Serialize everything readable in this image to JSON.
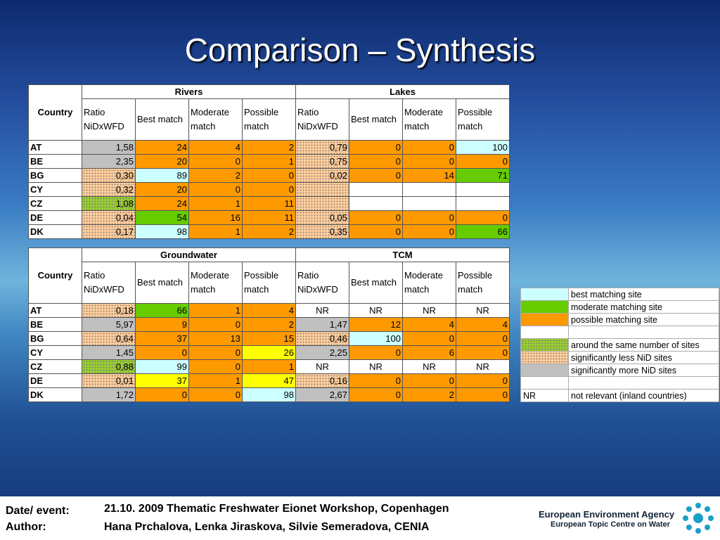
{
  "title": "Comparison – Synthesis",
  "tables": [
    {
      "column_header": "Country",
      "groups": [
        "Rivers",
        "Lakes"
      ],
      "subheaders": [
        "Ratio NiDxWFD",
        "Best match",
        "Moderate match",
        "Possible match",
        "Ratio NiDxWFD",
        "Best match",
        "Moderate match",
        "Possible match"
      ],
      "rows": [
        {
          "country": "AT",
          "cells": [
            "1,58",
            24,
            4,
            2,
            "0,79",
            0,
            0,
            100
          ],
          "fills": [
            "#c0c0c0",
            "#ff9900",
            "#ff9900",
            "#ff9900",
            "#ffcc99",
            "#ff9900",
            "#ff9900",
            "#ccffff"
          ]
        },
        {
          "country": "BE",
          "cells": [
            "2,35",
            20,
            0,
            1,
            "0,75",
            0,
            0,
            0
          ],
          "fills": [
            "#c0c0c0",
            "#ff9900",
            "#ff9900",
            "#ff9900",
            "#ffcc99",
            "#ff9900",
            "#ff9900",
            "#ff9900"
          ]
        },
        {
          "country": "BG",
          "cells": [
            "0,30",
            89,
            2,
            0,
            "0,02",
            0,
            14,
            71
          ],
          "fills": [
            "#ffcc99",
            "#ccffff",
            "#ff9900",
            "#ff9900",
            "#ffcc99",
            "#ff9900",
            "#ff9900",
            "#66cc00"
          ]
        },
        {
          "country": "CY",
          "cells": [
            "0,32",
            20,
            0,
            0,
            null,
            null,
            null,
            null
          ],
          "fills": [
            "#ffcc99",
            "#ff9900",
            "#ff9900",
            "#ff9900",
            "#ffcc99",
            "#ffffff",
            "#ffffff",
            "#ffffff"
          ]
        },
        {
          "country": "CZ",
          "cells": [
            "1,08",
            24,
            1,
            11,
            null,
            null,
            null,
            null
          ],
          "fills": [
            "#99cc33",
            "#ff9900",
            "#ff9900",
            "#ff9900",
            "#ffcc99",
            "#ffffff",
            "#ffffff",
            "#ffffff"
          ]
        },
        {
          "country": "DE",
          "cells": [
            "0,04",
            54,
            16,
            11,
            "0,05",
            0,
            0,
            0
          ],
          "fills": [
            "#ffcc99",
            "#66cc00",
            "#ff9900",
            "#ff9900",
            "#ffcc99",
            "#ff9900",
            "#ff9900",
            "#ff9900"
          ]
        },
        {
          "country": "DK",
          "cells": [
            "0,17",
            98,
            1,
            2,
            "0,35",
            0,
            0,
            66
          ],
          "fills": [
            "#ffcc99",
            "#ccffff",
            "#ff9900",
            "#ff9900",
            "#ffcc99",
            "#ff9900",
            "#ff9900",
            "#66cc00"
          ]
        }
      ]
    },
    {
      "column_header": "Country",
      "groups": [
        "Groundwater",
        "TCM"
      ],
      "subheaders": [
        "Ratio NiDxWFD",
        "Best match",
        "Moderate match",
        "Possible match",
        "Ratio NiDxWFD",
        "Best match",
        "Moderate match",
        "Possible match"
      ],
      "rows": [
        {
          "country": "AT",
          "cells": [
            "0,18",
            66,
            1,
            4,
            "NR",
            "NR",
            "NR",
            "NR"
          ],
          "fills": [
            "#ffcc99",
            "#66cc00",
            "#ff9900",
            "#ff9900",
            "#ffffff",
            "#ffffff",
            "#ffffff",
            "#ffffff"
          ]
        },
        {
          "country": "BE",
          "cells": [
            "5,97",
            9,
            0,
            2,
            "1,47",
            12,
            4,
            4
          ],
          "fills": [
            "#c0c0c0",
            "#ff9900",
            "#ff9900",
            "#ff9900",
            "#c0c0c0",
            "#ff9900",
            "#ff9900",
            "#ff9900"
          ]
        },
        {
          "country": "BG",
          "cells": [
            "0,64",
            37,
            13,
            15,
            "0,46",
            100,
            0,
            0
          ],
          "fills": [
            "#ffcc99",
            "#ff9900",
            "#ff9900",
            "#ff9900",
            "#ffcc99",
            "#ccffff",
            "#ff9900",
            "#ff9900"
          ]
        },
        {
          "country": "CY",
          "cells": [
            "1,45",
            0,
            0,
            26,
            "2,25",
            0,
            6,
            0
          ],
          "fills": [
            "#c0c0c0",
            "#ff9900",
            "#ff9900",
            "#ffff00",
            "#c0c0c0",
            "#ff9900",
            "#ff9900",
            "#ff9900"
          ]
        },
        {
          "country": "CZ",
          "cells": [
            "0,88",
            99,
            0,
            1,
            "NR",
            "NR",
            "NR",
            "NR"
          ],
          "fills": [
            "#99cc33",
            "#ccffff",
            "#ff9900",
            "#ff9900",
            "#ffffff",
            "#ffffff",
            "#ffffff",
            "#ffffff"
          ]
        },
        {
          "country": "DE",
          "cells": [
            "0,01",
            37,
            1,
            47,
            "0,16",
            0,
            0,
            0
          ],
          "fills": [
            "#ffcc99",
            "#ffff00",
            "#ff9900",
            "#ffff00",
            "#ffcc99",
            "#ff9900",
            "#ff9900",
            "#ff9900"
          ]
        },
        {
          "country": "DK",
          "cells": [
            "1,72",
            0,
            0,
            98,
            "2,67",
            0,
            2,
            0
          ],
          "fills": [
            "#c0c0c0",
            "#ff9900",
            "#ff9900",
            "#ccffff",
            "#c0c0c0",
            "#ff9900",
            "#ff9900",
            "#ff9900"
          ]
        }
      ]
    }
  ],
  "legend": [
    {
      "color": "#ccffff",
      "label": "best matching site"
    },
    {
      "color": "#66cc00",
      "label": "moderate matching site"
    },
    {
      "color": "#ff9900",
      "label": "possible matching site"
    },
    {
      "color": "#99cc33",
      "pattern": "dotted",
      "label": "around the same number of sites"
    },
    {
      "color": "#ffcc99",
      "pattern": "dotted",
      "label": "significantly less NiD sites"
    },
    {
      "color": "#c0c0c0",
      "label": "significantly more NiD sites"
    },
    {
      "swatch_text": "NR",
      "label": "not relevant (inland countries)"
    }
  ],
  "footer": {
    "date_label": "Date/ event:",
    "date": "21.10. 2009 Thematic Freshwater Eionet Workshop, Copenhagen",
    "author_label": "Author:",
    "author": "Hana Prchalova, Lenka Jiraskova, Silvie Semeradova, CENIA",
    "agency": "European Environment Agency",
    "centre": "European Topic Centre on Water"
  }
}
